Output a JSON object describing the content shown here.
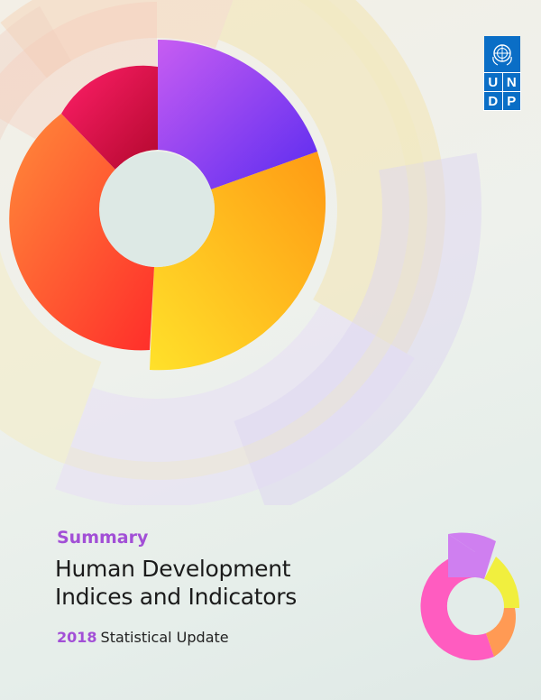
{
  "logo": {
    "letters": [
      "U",
      "N",
      "D",
      "P"
    ]
  },
  "cover": {
    "summary_label": "Summary",
    "title_line1": "Human Development",
    "title_line2": "Indices and Indicators",
    "year": "2018",
    "subtitle": "Statistical Update"
  },
  "colors": {
    "brand_blue": "#0a6ec6",
    "accent_purple": "#a24fd6",
    "segment_purple": "#8b4df0",
    "segment_yellow": "#fcc21c",
    "segment_orange": "#ff6a2c",
    "segment_crimson": "#e0104e",
    "mini_pink": "#ff5cc0",
    "mini_violet": "#cf7ff0",
    "mini_yellow": "#f1ef3e",
    "mini_orange": "#ff9a54"
  },
  "icons": {
    "emblem": "un-emblem-icon"
  }
}
